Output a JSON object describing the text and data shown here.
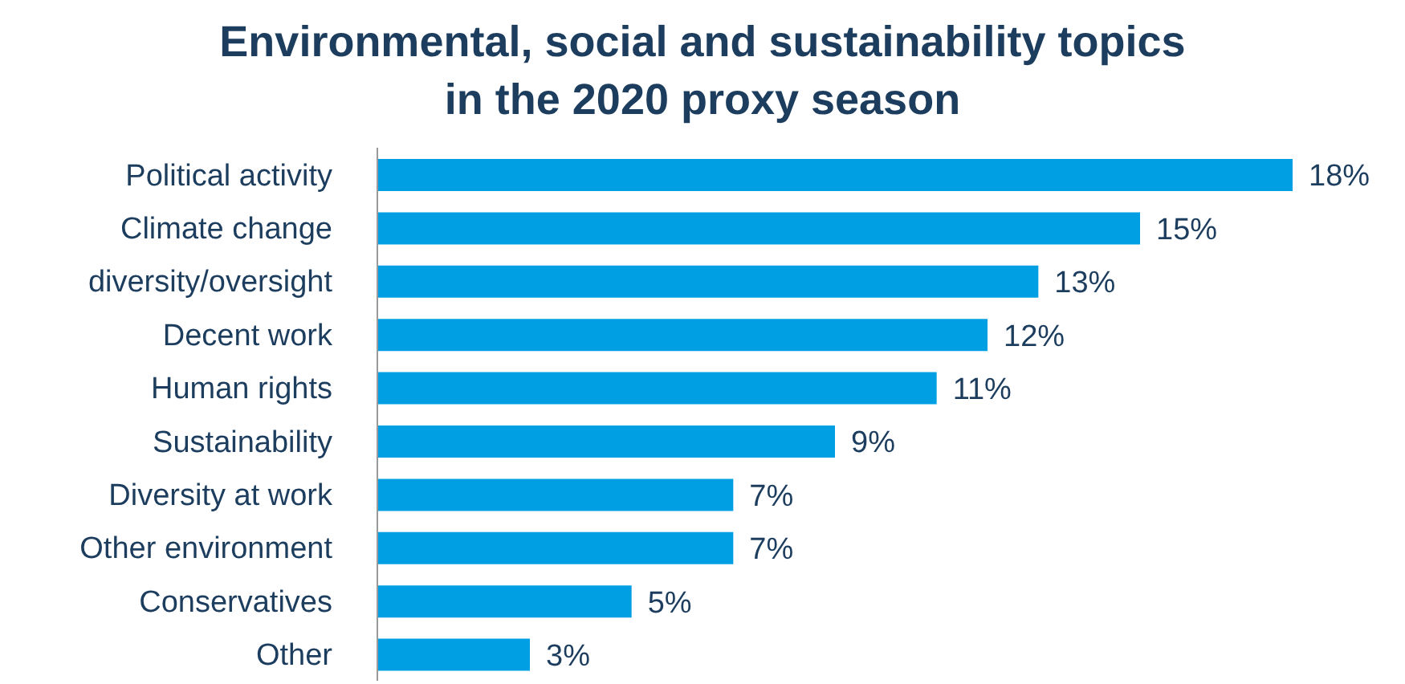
{
  "chart_data": {
    "type": "bar",
    "orientation": "horizontal",
    "title": "Environmental, social and sustainability topics\nin the 2020 proxy season",
    "categories": [
      "Political activity",
      "Climate change",
      "diversity/oversight",
      "Decent work",
      "Human rights",
      "Sustainability",
      "Diversity at work",
      "Other environment",
      "Conservatives",
      "Other"
    ],
    "values": [
      18,
      15,
      13,
      12,
      11,
      9,
      7,
      7,
      5,
      3
    ],
    "value_labels": [
      "18%",
      "15%",
      "13%",
      "12%",
      "11%",
      "9%",
      "7%",
      "7%",
      "5%",
      "3%"
    ],
    "color": "#009fe3"
  }
}
